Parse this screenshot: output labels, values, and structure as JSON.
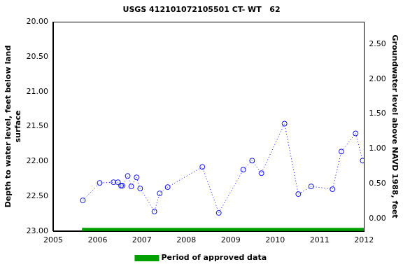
{
  "chart_data": {
    "type": "line",
    "title": "USGS 412101072105501 CT- WT   62",
    "y_label": [
      "Depth to water level, feet below land",
      "surface"
    ],
    "y2_label": "Groundwater level above NAVD 1988, feet",
    "xlim": [
      2005,
      2012
    ],
    "xticks": [
      2005,
      2006,
      2007,
      2008,
      2009,
      2010,
      2011,
      2012
    ],
    "ylim": [
      23.0,
      20.0
    ],
    "yticks": [
      {
        "value": 20.0,
        "label": "20.00"
      },
      {
        "value": 20.5,
        "label": "20.50"
      },
      {
        "value": 21.0,
        "label": "21.00"
      },
      {
        "value": 21.5,
        "label": "21.50"
      },
      {
        "value": 22.0,
        "label": "22.00"
      },
      {
        "value": 22.5,
        "label": "22.50"
      },
      {
        "value": 23.0,
        "label": "23.00"
      }
    ],
    "y2lim": [
      -0.18,
      2.82
    ],
    "y2ticks": [
      {
        "value": 0.0,
        "label": "0.00"
      },
      {
        "value": 0.5,
        "label": "0.50"
      },
      {
        "value": 1.0,
        "label": "1.00"
      },
      {
        "value": 1.5,
        "label": "1.50"
      },
      {
        "value": 2.0,
        "label": "2.00"
      },
      {
        "value": 2.5,
        "label": "2.50"
      }
    ],
    "grid": false,
    "legend": "bottom",
    "series": [
      {
        "color": "#0000ff",
        "marker": "circle",
        "line_style": "dotted",
        "x": [
          2005.67,
          2006.05,
          2006.36,
          2006.46,
          2006.53,
          2006.56,
          2006.68,
          2006.76,
          2006.88,
          2006.96,
          2007.28,
          2007.4,
          2007.58,
          2008.36,
          2008.73,
          2009.28,
          2009.48,
          2009.69,
          2010.21,
          2010.52,
          2010.81,
          2011.29,
          2011.49,
          2011.81,
          2011.97
        ],
        "values": [
          22.56,
          22.31,
          22.3,
          22.3,
          22.35,
          22.35,
          22.21,
          22.36,
          22.23,
          22.39,
          22.72,
          22.46,
          22.37,
          22.08,
          22.74,
          22.12,
          21.99,
          22.17,
          21.46,
          22.47,
          22.36,
          22.4,
          21.86,
          21.6,
          21.99
        ]
      },
      {
        "name": "Period of approved data",
        "color": "#00a000",
        "marker": "none",
        "line_style": "solid",
        "x": [
          2005.65,
          2012.0
        ],
        "values": [
          22.98,
          22.98
        ]
      }
    ]
  }
}
